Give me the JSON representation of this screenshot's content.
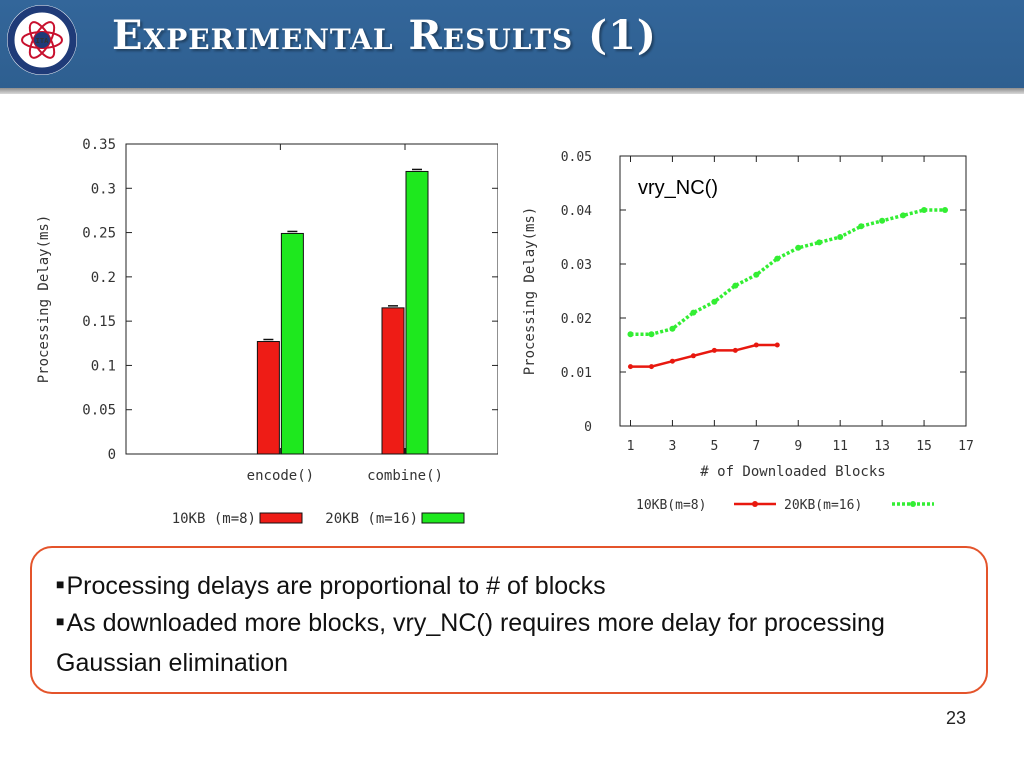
{
  "slide": {
    "title": "Experimental Results (1)",
    "page_number": "23",
    "logo": {
      "text_top": "US Army Research Laboratory",
      "text_bottom": "UK Ministry of Defence",
      "center": "ITA",
      "colors": {
        "ring": "#1f3b78",
        "inner": "#c8102e"
      }
    },
    "bullets": [
      "Processing delays are proportional to # of blocks",
      "As downloaded more blocks, vry_NC() requires more delay for processing Gaussian elimination"
    ],
    "colors": {
      "header": "#33669a",
      "box_border": "#e4542b"
    }
  },
  "chart_data": [
    {
      "type": "bar",
      "title": "",
      "xlabel": "",
      "ylabel": "Processing Delay(ms)",
      "categories": [
        "encode()",
        "combine()"
      ],
      "ylim": [
        0,
        0.35
      ],
      "yticks": [
        "0",
        "0.05",
        "0.1",
        "0.15",
        "0.2",
        "0.25",
        "0.3",
        "0.35"
      ],
      "error_bars": true,
      "legend_position": "bottom",
      "series": [
        {
          "name": "10KB (m=8)",
          "color": "#ee1c16",
          "values": [
            0.127,
            0.165
          ]
        },
        {
          "name": "20KB (m=16)",
          "color": "#1ee81e",
          "values": [
            0.249,
            0.319
          ]
        }
      ]
    },
    {
      "type": "line",
      "annotation": "vry_NC()",
      "xlabel": "# of Downloaded Blocks",
      "ylabel": "Processing Delay(ms)",
      "xlim": [
        0.5,
        17
      ],
      "ylim": [
        0,
        0.05
      ],
      "xticks": [
        "1",
        "3",
        "5",
        "7",
        "9",
        "11",
        "13",
        "15",
        "17"
      ],
      "yticks": [
        "0",
        "0.01",
        "0.02",
        "0.03",
        "0.04",
        "0.05"
      ],
      "legend_position": "bottom",
      "series": [
        {
          "name": "10KB(m=8)",
          "color": "#e8180f",
          "style": "solid",
          "x": [
            1,
            2,
            3,
            4,
            5,
            6,
            7,
            8
          ],
          "y": [
            0.011,
            0.011,
            0.012,
            0.013,
            0.014,
            0.014,
            0.015,
            0.015
          ]
        },
        {
          "name": "20KB(m=16)",
          "color": "#33ee33",
          "style": "dotted",
          "x": [
            1,
            2,
            3,
            4,
            5,
            6,
            7,
            8,
            9,
            10,
            11,
            12,
            13,
            14,
            15,
            16
          ],
          "y": [
            0.017,
            0.017,
            0.018,
            0.021,
            0.023,
            0.026,
            0.028,
            0.031,
            0.033,
            0.034,
            0.035,
            0.037,
            0.038,
            0.039,
            0.04,
            0.04
          ]
        }
      ]
    }
  ]
}
